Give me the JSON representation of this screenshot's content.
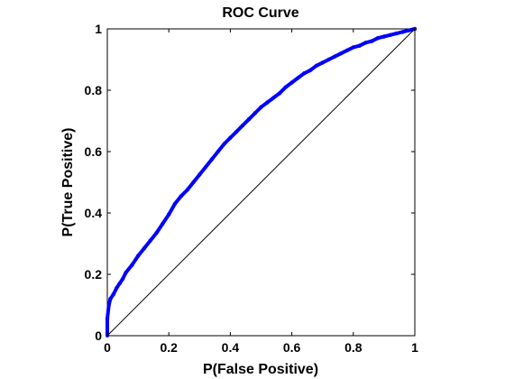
{
  "chart_data": {
    "type": "line",
    "title": "ROC Curve",
    "xlabel": "P(False Positive)",
    "ylabel": "P(True Positive)",
    "xlim": [
      0,
      1
    ],
    "ylim": [
      0,
      1
    ],
    "x_ticks": [
      "0",
      "0.2",
      "0.4",
      "0.6",
      "0.8",
      "1"
    ],
    "y_ticks": [
      "0",
      "0.2",
      "0.4",
      "0.6",
      "0.8",
      "1"
    ],
    "grid": false,
    "legend": "none",
    "series": [
      {
        "color": "#0000ff",
        "style": "line-with-markers",
        "x": [
          0,
          0,
          0.005,
          0.01,
          0.02,
          0.03,
          0.04,
          0.05,
          0.06,
          0.08,
          0.1,
          0.12,
          0.14,
          0.16,
          0.18,
          0.2,
          0.22,
          0.24,
          0.26,
          0.28,
          0.3,
          0.32,
          0.34,
          0.36,
          0.38,
          0.4,
          0.42,
          0.44,
          0.46,
          0.48,
          0.5,
          0.52,
          0.54,
          0.56,
          0.58,
          0.6,
          0.62,
          0.64,
          0.66,
          0.68,
          0.7,
          0.72,
          0.74,
          0.76,
          0.78,
          0.8,
          0.82,
          0.84,
          0.86,
          0.88,
          0.9,
          0.92,
          0.94,
          0.96,
          0.98,
          1.0
        ],
        "y": [
          0,
          0.055,
          0.1,
          0.12,
          0.135,
          0.155,
          0.17,
          0.185,
          0.205,
          0.23,
          0.26,
          0.285,
          0.31,
          0.335,
          0.365,
          0.395,
          0.43,
          0.455,
          0.475,
          0.5,
          0.525,
          0.55,
          0.575,
          0.6,
          0.625,
          0.645,
          0.665,
          0.685,
          0.705,
          0.725,
          0.745,
          0.76,
          0.775,
          0.79,
          0.81,
          0.825,
          0.84,
          0.855,
          0.865,
          0.88,
          0.89,
          0.9,
          0.91,
          0.92,
          0.93,
          0.94,
          0.945,
          0.955,
          0.96,
          0.97,
          0.975,
          0.98,
          0.985,
          0.99,
          0.995,
          1.0
        ]
      },
      {
        "color": "#000000",
        "style": "line",
        "x": [
          0,
          1
        ],
        "y": [
          0,
          1
        ]
      }
    ]
  }
}
